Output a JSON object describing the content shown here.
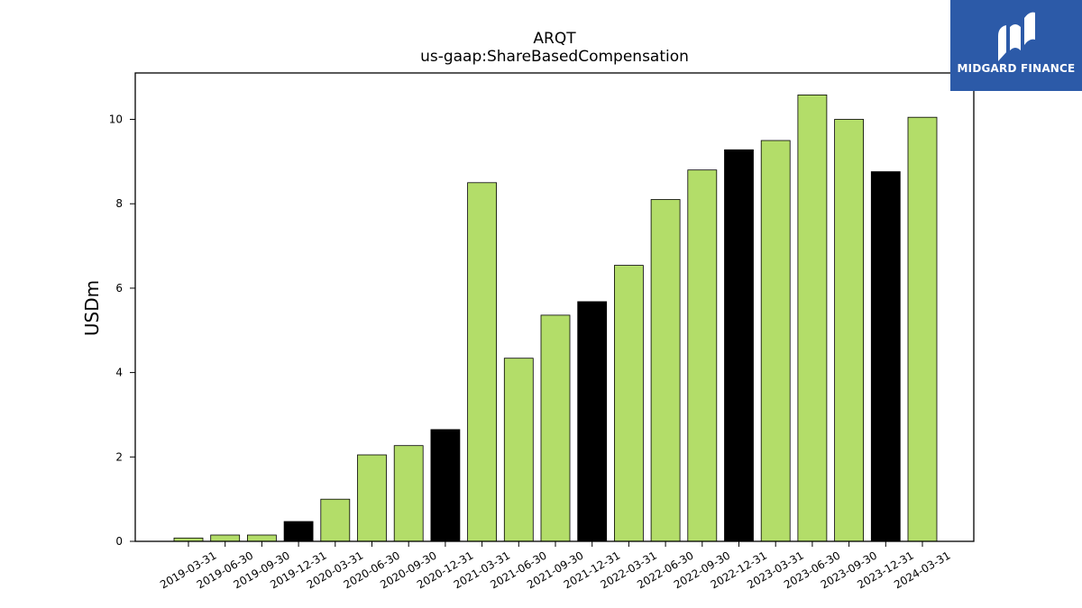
{
  "logo": {
    "text": "MIDGARD FINANCE"
  },
  "colors": {
    "regular": "#b3dd69",
    "q4": "#000000",
    "logo_bg": "#2c5aa8"
  },
  "chart_data": {
    "type": "bar",
    "title": "ARQT",
    "subtitle": "us-gaap:ShareBasedCompensation",
    "xlabel": "",
    "ylabel": "USDm",
    "ylim": [
      0,
      11.1
    ],
    "yticks": [
      0,
      2,
      4,
      6,
      8,
      10
    ],
    "grid": false,
    "categories": [
      "2019-03-31",
      "2019-06-30",
      "2019-09-30",
      "2019-12-31",
      "2020-03-31",
      "2020-06-30",
      "2020-09-30",
      "2020-12-31",
      "2021-03-31",
      "2021-06-30",
      "2021-09-30",
      "2021-12-31",
      "2022-03-31",
      "2022-06-30",
      "2022-09-30",
      "2022-12-31",
      "2023-03-31",
      "2023-06-30",
      "2023-09-30",
      "2023-12-31",
      "2024-03-31"
    ],
    "values": [
      0.08,
      0.15,
      0.15,
      0.47,
      1.0,
      2.05,
      2.27,
      2.65,
      8.5,
      4.34,
      5.36,
      5.68,
      6.54,
      8.1,
      8.8,
      9.28,
      9.5,
      10.58,
      10.0,
      8.76,
      10.05
    ]
  }
}
